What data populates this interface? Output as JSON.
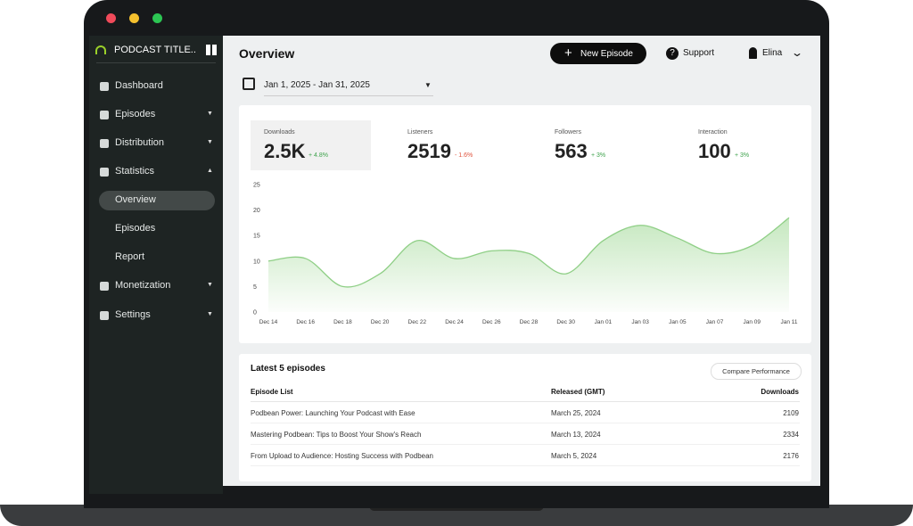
{
  "sidebar": {
    "brand": "PODCAST TITLE..",
    "nav": [
      {
        "label": "Dashboard"
      },
      {
        "label": "Episodes"
      },
      {
        "label": "Distribution"
      },
      {
        "label": "Statistics"
      },
      {
        "label": "Overview"
      },
      {
        "label": "Episodes"
      },
      {
        "label": "Report"
      },
      {
        "label": "Monetization"
      },
      {
        "label": "Settings"
      }
    ]
  },
  "header": {
    "title": "Overview",
    "new_episode": "New Episode",
    "support": "Support",
    "user": "Elina"
  },
  "date_range": "Jan 1, 2025 - Jan 31, 2025",
  "stats": [
    {
      "label": "Downloads",
      "value": "2.5K",
      "change": "+ 4.8%"
    },
    {
      "label": "Listeners",
      "value": "2519",
      "change": "- 1.6%"
    },
    {
      "label": "Followers",
      "value": "563",
      "change": "+ 3%"
    },
    {
      "label": "Interaction",
      "value": "100",
      "change": "+ 3%"
    }
  ],
  "chart_data": {
    "type": "area",
    "categories": [
      "Dec 14",
      "Dec 16",
      "Dec 18",
      "Dec 20",
      "Dec 22",
      "Dec 24",
      "Dec 26",
      "Dec 28",
      "Dec 30",
      "Jan 01",
      "Jan 03",
      "Jan 05",
      "Jan 07",
      "Jan 09",
      "Jan 11"
    ],
    "values": [
      10,
      10.5,
      5,
      7.5,
      14,
      10.5,
      12,
      11.5,
      7.5,
      14,
      17,
      14.5,
      11.5,
      13,
      18.5
    ],
    "color": "#8fcf86",
    "ylim": [
      0,
      25
    ],
    "yticks": [
      0,
      5,
      10,
      15,
      20,
      25
    ],
    "grid": false
  },
  "episodes": {
    "title": "Latest 5 episodes",
    "compare": "Compare Performance",
    "columns": [
      "Episode List",
      "Released (GMT)",
      "Downloads"
    ],
    "rows": [
      [
        "Podbean Power: Launching Your Podcast with Ease",
        "March 25, 2024",
        "2109"
      ],
      [
        "Mastering Podbean: Tips to Boost Your Show's Reach",
        "March 13, 2024",
        "2334"
      ],
      [
        "From Upload to Audience: Hosting Success with Podbean",
        "March 5, 2024",
        "2176"
      ]
    ]
  }
}
